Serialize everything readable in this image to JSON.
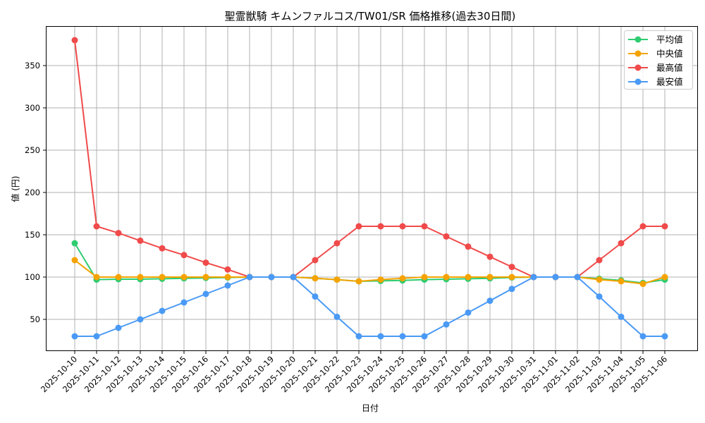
{
  "chart_data": {
    "type": "line",
    "title": "聖霊獣騎 キムンファルコス/TW01/SR 価格推移(過去30日間)",
    "xlabel": "日付",
    "ylabel": "値 (円)",
    "ylim": [
      12,
      395
    ],
    "yticks": [
      50,
      100,
      150,
      200,
      250,
      300,
      350
    ],
    "grid": true,
    "legend_position": "upper right",
    "categories": [
      "2025-10-10",
      "2025-10-11",
      "2025-10-12",
      "2025-10-13",
      "2025-10-14",
      "2025-10-15",
      "2025-10-16",
      "2025-10-17",
      "2025-10-18",
      "2025-10-19",
      "2025-10-20",
      "2025-10-21",
      "2025-10-22",
      "2025-10-23",
      "2025-10-24",
      "2025-10-25",
      "2025-10-26",
      "2025-10-27",
      "2025-10-28",
      "2025-10-29",
      "2025-10-30",
      "2025-10-31",
      "2025-11-01",
      "2025-11-02",
      "2025-11-03",
      "2025-11-04",
      "2025-11-05",
      "2025-11-06"
    ],
    "series": [
      {
        "name": "平均値",
        "color": "#2ecc71",
        "values": [
          140,
          97,
          97.5,
          97.5,
          98,
          98.5,
          99,
          99.5,
          100,
          100,
          100,
          98.5,
          97,
          95,
          95.5,
          96,
          97,
          97.5,
          98,
          98.5,
          99.5,
          100,
          100,
          100,
          98,
          96,
          93,
          97
        ]
      },
      {
        "name": "中央値",
        "color": "#f5a300",
        "values": [
          120,
          100,
          100,
          100,
          100,
          100,
          100,
          100,
          100,
          100,
          100,
          98.5,
          97,
          95,
          97,
          98.5,
          100,
          100,
          100,
          100,
          100,
          100,
          100,
          100,
          97,
          95,
          92,
          100
        ]
      },
      {
        "name": "最高値",
        "color": "#f04a4a",
        "values": [
          380,
          160,
          152,
          143,
          134,
          126,
          117,
          109,
          100,
          100,
          100,
          120,
          140,
          160,
          160,
          160,
          160,
          148,
          136,
          124,
          112,
          100,
          100,
          100,
          120,
          140,
          160,
          160
        ]
      },
      {
        "name": "最安値",
        "color": "#4a9af5",
        "values": [
          30,
          30,
          40,
          50,
          60,
          70,
          80,
          90,
          100,
          100,
          100,
          77,
          53,
          30,
          30,
          30,
          30,
          44,
          58,
          72,
          86,
          100,
          100,
          100,
          77,
          53,
          30,
          30
        ]
      }
    ]
  }
}
